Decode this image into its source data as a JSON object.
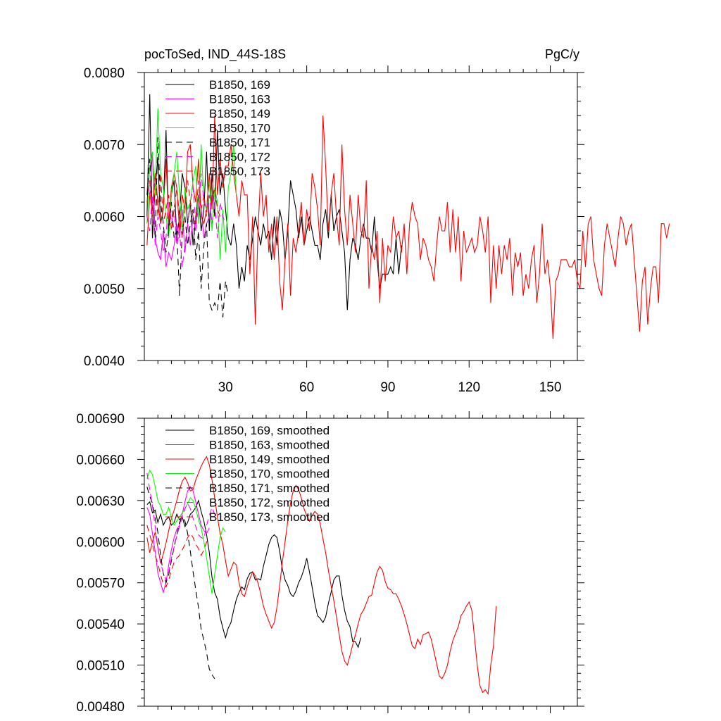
{
  "chart_data": [
    {
      "type": "line",
      "title": "pocToSed, IND_44S-18S",
      "units": "PgC/y",
      "xlim": [
        0,
        160
      ],
      "ylim": [
        0.004,
        0.008
      ],
      "x_ticks": [
        30,
        60,
        90,
        120,
        150
      ],
      "x_tick_labels": [
        "30",
        "60",
        "90",
        "120",
        "150"
      ],
      "y_ticks": [
        0.004,
        0.005,
        0.006,
        0.007,
        0.008
      ],
      "y_tick_labels": [
        "0.0040",
        "0.0050",
        "0.0060",
        "0.0070",
        "0.0080"
      ],
      "legend_position": "top-left",
      "series": [
        {
          "name": "B1850, 169",
          "color": "#000000",
          "dash": "solid",
          "values": [
            0.006,
            0.0077,
            0.0057,
            0.0064,
            0.0068,
            0.0059,
            0.0061,
            0.0072,
            0.0058,
            0.0063,
            0.0065,
            0.0057,
            0.006,
            0.0066,
            0.0064,
            0.0059,
            0.0062,
            0.0056,
            0.006,
            0.0063,
            0.0058,
            0.0061,
            0.0069,
            0.0058,
            0.0066,
            0.006,
            0.0072,
            0.0063,
            0.0066,
            0.0061,
            0.0057,
            0.0056,
            0.0059,
            0.0056,
            0.005,
            0.0053,
            0.0051,
            0.0056,
            0.0054,
            0.0057,
            0.006,
            0.0058,
            0.0056,
            0.0059,
            0.0057,
            0.0058,
            0.0054,
            0.006,
            0.0056,
            0.0061,
            0.0059,
            0.0054,
            0.0058,
            0.0065,
            0.0063,
            0.0061,
            0.0057,
            0.006,
            0.0056,
            0.0058,
            0.006,
            0.0058,
            0.0056,
            0.0056,
            0.0054,
            0.0059,
            0.0061,
            0.0057,
            0.0063,
            0.0058,
            0.006,
            0.0061,
            0.0058,
            0.0055,
            0.0047,
            0.0054,
            0.0057,
            0.0056,
            0.0054,
            0.0057,
            0.0059,
            0.0057,
            0.0057,
            0.0055,
            0.006,
            0.0054,
            0.005,
            0.0052,
            0.0052,
            0.0052,
            0.0053,
            0.0052,
            0.0057,
            0.0052,
            0.0056
          ]
        },
        {
          "name": "B1850, 163",
          "color": "#ff00ff",
          "dash": "solid",
          "values": [
            0.0064,
            0.0063,
            0.0069,
            0.0057,
            0.0055,
            0.0054,
            0.0058,
            0.0053,
            0.0055,
            0.0054,
            0.0056,
            0.0059,
            0.0057,
            0.0061,
            0.0055,
            0.0059,
            0.0056,
            0.006,
            0.0058,
            0.0063,
            0.0061,
            0.0057,
            0.0059,
            0.006,
            0.0063,
            0.0061
          ]
        },
        {
          "name": "B1850, 149",
          "color": "#ff0000",
          "dash": "solid",
          "values": [
            0.0056,
            0.0063,
            0.0061,
            0.0066,
            0.0062,
            0.0059,
            0.0061,
            0.0068,
            0.0059,
            0.0064,
            0.0066,
            0.0064,
            0.0058,
            0.0063,
            0.0061,
            0.0069,
            0.007,
            0.0064,
            0.0062,
            0.0068,
            0.006,
            0.0059,
            0.0061,
            0.0066,
            0.0061,
            0.0074,
            0.0063,
            0.0068,
            0.0064,
            0.0067,
            0.0067,
            0.007,
            0.0066,
            0.0063,
            0.006,
            0.0065,
            0.0063,
            0.0063,
            0.0052,
            0.006,
            0.0045,
            0.0058,
            0.0066,
            0.006,
            0.0063,
            0.0055,
            0.0059,
            0.0054,
            0.006,
            0.0051,
            0.0047,
            0.0054,
            0.0059,
            0.0049,
            0.0057,
            0.0055,
            0.0058,
            0.0062,
            0.0056,
            0.0061,
            0.0058,
            0.0066,
            0.0064,
            0.0061,
            0.0056,
            0.0074,
            0.0067,
            0.0058,
            0.0063,
            0.0066,
            0.006,
            0.0056,
            0.007,
            0.0061,
            0.0056,
            0.0063,
            0.0059,
            0.0055,
            0.0063,
            0.0058,
            0.0057,
            0.0065,
            0.005,
            0.0056,
            0.0054,
            0.0058,
            0.0048,
            0.0057,
            0.0051,
            0.0056,
            0.0055,
            0.006,
            0.0057,
            0.0058,
            0.0055,
            0.0059,
            0.0052,
            0.0059,
            0.0062,
            0.006,
            0.0059,
            0.0054,
            0.0057,
            0.0056,
            0.0054,
            0.0053,
            0.0051,
            0.0056,
            0.006,
            0.0058,
            0.0058,
            0.0062,
            0.0055,
            0.0061,
            0.0055,
            0.006,
            0.0051,
            0.0058,
            0.0055,
            0.0056,
            0.0057,
            0.0055,
            0.0056,
            0.006,
            0.0058,
            0.0055,
            0.006,
            0.0048,
            0.0056,
            0.005,
            0.0056,
            0.0052,
            0.0056,
            0.0054,
            0.0057,
            0.0049,
            0.0055,
            0.0053,
            0.0055,
            0.0049,
            0.0052,
            0.005,
            0.0054,
            0.0056,
            0.0048,
            0.0052,
            0.0059,
            0.0052,
            0.0054,
            0.005,
            0.0043,
            0.0051,
            0.0052,
            0.0054,
            0.0054,
            0.0054,
            0.0053,
            0.0053,
            0.0054,
            0.0051,
            0.005,
            0.0058,
            0.0053,
            0.0059,
            0.006,
            0.0054,
            0.0052,
            0.005,
            0.0049,
            0.0056,
            0.0059,
            0.0057,
            0.0055,
            0.0053,
            0.0057,
            0.006,
            0.0059,
            0.0056,
            0.0058,
            0.0059,
            0.0054,
            0.0049,
            0.0044,
            0.0051,
            0.0053,
            0.0045,
            0.005,
            0.0053,
            0.0053,
            0.0048,
            0.0059,
            0.0059,
            0.0057,
            0.0059
          ]
        },
        {
          "name": "B1850, 170",
          "color": "#00ff00",
          "dash": "solid",
          "values": [
            0.0059,
            0.0067,
            0.0069,
            0.0063,
            0.0075,
            0.0066,
            0.0064,
            0.006,
            0.0057,
            0.0063,
            0.0066,
            0.0069,
            0.0063,
            0.0058,
            0.0064,
            0.0061,
            0.0062,
            0.0065,
            0.0067,
            0.0059,
            0.007,
            0.0062,
            0.0061,
            0.0065,
            0.0058,
            0.0064,
            0.0062,
            0.0054,
            0.0061,
            0.0055,
            0.0064,
            0.0066,
            0.007,
            0.0063
          ]
        },
        {
          "name": "B1850, 171",
          "color": "#000000",
          "dash": "long",
          "values": [
            0.0063,
            0.0068,
            0.0062,
            0.0057,
            0.0071,
            0.0062,
            0.0059,
            0.0055,
            0.0058,
            0.0062,
            0.0057,
            0.0058,
            0.0049,
            0.0058,
            0.006,
            0.0056,
            0.0059,
            0.0061,
            0.0054,
            0.0058,
            0.005,
            0.0056,
            0.0059,
            0.0048,
            0.0047,
            0.0048,
            0.0047,
            0.0051,
            0.0046,
            0.0051,
            0.0049
          ]
        },
        {
          "name": "B1850, 172",
          "color": "#ff00ff",
          "dash": "long",
          "values": [
            0.006,
            0.0058,
            0.0063,
            0.0056,
            0.006,
            0.0058,
            0.0055,
            0.0057,
            0.0063,
            0.0059,
            0.0061,
            0.0056,
            0.0058,
            0.0053,
            0.0056,
            0.0059,
            0.0062,
            0.0064,
            0.0059,
            0.0061,
            0.0066,
            0.0062,
            0.0061,
            0.0063,
            0.0059,
            0.0062,
            0.0057,
            0.0062,
            0.006,
            0.0059
          ]
        },
        {
          "name": "B1850, 173",
          "color": "#ff0000",
          "dash": "long",
          "values": [
            0.0062,
            0.0065,
            0.006,
            0.0066,
            0.006,
            0.0066,
            0.0059,
            0.0061,
            0.0063,
            0.0058,
            0.0061,
            0.0064,
            0.006,
            0.0057,
            0.0061,
            0.0065,
            0.0062,
            0.006,
            0.0059,
            0.0065,
            0.0061,
            0.0063,
            0.006,
            0.0066,
            0.0062,
            0.0064,
            0.0061,
            0.006
          ]
        }
      ]
    },
    {
      "type": "line",
      "xlim": [
        0,
        160
      ],
      "ylim": [
        0.0048,
        0.0069
      ],
      "x_ticks": [
        30,
        60,
        90,
        120,
        150
      ],
      "y_ticks": [
        0.0048,
        0.0051,
        0.0054,
        0.0057,
        0.006,
        0.0063,
        0.0066,
        0.0069
      ],
      "y_tick_labels": [
        "0.00480",
        "0.00510",
        "0.00540",
        "0.00570",
        "0.00600",
        "0.00630",
        "0.00660",
        "0.00690"
      ],
      "legend_position": "top-left",
      "series": [
        {
          "name": "B1850, 169, smoothed",
          "color": "#000000",
          "dash": "solid",
          "values": [
            0.00627,
            0.00629,
            0.00621,
            0.00623,
            0.00614,
            0.0062,
            0.00612,
            0.00616,
            0.00618,
            0.00612,
            0.00614,
            0.0062,
            0.00616,
            0.00618,
            0.00611,
            0.00614,
            0.0062,
            0.00622,
            0.00625,
            0.0063,
            0.00622,
            0.00615,
            0.00605,
            0.00592,
            0.00574,
            0.00563,
            0.00558,
            0.00545,
            0.00537,
            0.0053,
            0.00537,
            0.00541,
            0.0055,
            0.00558,
            0.00563,
            0.00567,
            0.00565,
            0.00573,
            0.00577,
            0.00578,
            0.00572,
            0.00573,
            0.00572,
            0.00582,
            0.0059,
            0.00598,
            0.00603,
            0.00605,
            0.00603,
            0.00593,
            0.0058,
            0.00572,
            0.00568,
            0.00562,
            0.0056,
            0.00564,
            0.0057,
            0.00574,
            0.0058,
            0.00588,
            0.00578,
            0.00567,
            0.00555,
            0.00546,
            0.00544,
            0.00541,
            0.00545,
            0.00555,
            0.00563,
            0.00572,
            0.00575,
            0.00575,
            0.00561,
            0.0055,
            0.00542,
            0.00538,
            0.00527,
            0.00527,
            0.00523,
            0.0053
          ]
        },
        {
          "name": "B1850, 163, smoothed",
          "color": "#ff00ff",
          "dash": "solid",
          "values": [
            0.00625,
            0.0062,
            0.00606,
            0.00593,
            0.00577,
            0.0057,
            0.00563,
            0.0057,
            0.00583,
            0.00594,
            0.00603,
            0.00609,
            0.00612,
            0.0062,
            0.00629,
            0.00637,
            0.0064,
            0.00637,
            0.00629,
            0.0062,
            0.00612,
            0.00608,
            0.00606,
            0.0061
          ]
        },
        {
          "name": "B1850, 149, smoothed",
          "color": "#ff0000",
          "dash": "solid",
          "values": [
            0.00603,
            0.00592,
            0.006,
            0.00607,
            0.00596,
            0.00584,
            0.00591,
            0.00599,
            0.00608,
            0.00617,
            0.00623,
            0.0063,
            0.00638,
            0.00644,
            0.00647,
            0.00643,
            0.00637,
            0.00638,
            0.00645,
            0.0065,
            0.00655,
            0.00659,
            0.00662,
            0.00656,
            0.00645,
            0.00632,
            0.00618,
            0.00606,
            0.00598,
            0.00586,
            0.00575,
            0.0058,
            0.00585,
            0.00583,
            0.0057,
            0.00562,
            0.0056,
            0.00567,
            0.00573,
            0.00578,
            0.00575,
            0.0057,
            0.00562,
            0.00553,
            0.00547,
            0.00542,
            0.00537,
            0.00541,
            0.00552,
            0.00568,
            0.00585,
            0.006,
            0.00615,
            0.00628,
            0.00637,
            0.00641,
            0.00638,
            0.00632,
            0.00624,
            0.00619,
            0.00615,
            0.00619,
            0.00622,
            0.0062,
            0.00613,
            0.00602,
            0.00592,
            0.00579,
            0.00568,
            0.00557,
            0.00545,
            0.00532,
            0.0052,
            0.00513,
            0.0051,
            0.00517,
            0.00525,
            0.00532,
            0.0054,
            0.00547,
            0.0055,
            0.00555,
            0.0056,
            0.00561,
            0.0057,
            0.00578,
            0.00582,
            0.00579,
            0.00571,
            0.00566,
            0.00565,
            0.00562,
            0.00562,
            0.00558,
            0.00553,
            0.00547,
            0.0054,
            0.00532,
            0.00524,
            0.00522,
            0.00529,
            0.00525,
            0.00532,
            0.00533,
            0.00534,
            0.00529,
            0.0052,
            0.00511,
            0.00502,
            0.005,
            0.00504,
            0.0051,
            0.0052,
            0.00528,
            0.00533,
            0.00538,
            0.00546,
            0.00549,
            0.00553,
            0.00556,
            0.0055,
            0.0053,
            0.0051,
            0.00495,
            0.0049,
            0.00492,
            0.00489,
            0.0051,
            0.00524,
            0.00553
          ]
        },
        {
          "name": "B1850, 170, smoothed",
          "color": "#00ff00",
          "dash": "solid",
          "values": [
            0.00646,
            0.00652,
            0.00649,
            0.0064,
            0.0063,
            0.00626,
            0.0062,
            0.0062,
            0.00625,
            0.00618,
            0.00612,
            0.00615,
            0.00618,
            0.00621,
            0.00624,
            0.00628,
            0.00632,
            0.0063,
            0.00624,
            0.00616,
            0.0061,
            0.006,
            0.00588,
            0.00575,
            0.00562,
            0.00576,
            0.0059,
            0.00603,
            0.0061,
            0.00607
          ]
        },
        {
          "name": "B1850, 171, smoothed",
          "color": "#000000",
          "dash": "long",
          "values": [
            0.0064,
            0.00633,
            0.00628,
            0.00617,
            0.00607,
            0.0059,
            0.00577,
            0.0057,
            0.00576,
            0.00586,
            0.00596,
            0.00605,
            0.00614,
            0.00618,
            0.00615,
            0.00606,
            0.00593,
            0.00578,
            0.00565,
            0.00552,
            0.00536,
            0.00528,
            0.00519,
            0.00507,
            0.00503,
            0.005
          ]
        },
        {
          "name": "B1850, 172, smoothed",
          "color": "#ff00ff",
          "dash": "long",
          "values": [
            0.0065,
            0.00638,
            0.00626,
            0.00611,
            0.00596,
            0.00585,
            0.00577,
            0.00572,
            0.00578,
            0.00588,
            0.00596,
            0.00604,
            0.00611,
            0.00618,
            0.00624,
            0.00628,
            0.00624,
            0.00617,
            0.00611,
            0.00605,
            0.00603,
            0.00602,
            0.00612,
            0.00619,
            0.00625,
            0.0062
          ]
        },
        {
          "name": "B1850, 173, smoothed",
          "color": "#ff0000",
          "dash": "long",
          "values": [
            0.00612,
            0.00605,
            0.00598,
            0.0059,
            0.00584,
            0.00576,
            0.00569,
            0.00567,
            0.00572,
            0.00579,
            0.00585,
            0.00588,
            0.0059,
            0.00594,
            0.00598,
            0.00603,
            0.00606,
            0.00603,
            0.00598,
            0.00595,
            0.0059,
            0.00594,
            0.006,
            0.00601
          ]
        }
      ]
    }
  ]
}
